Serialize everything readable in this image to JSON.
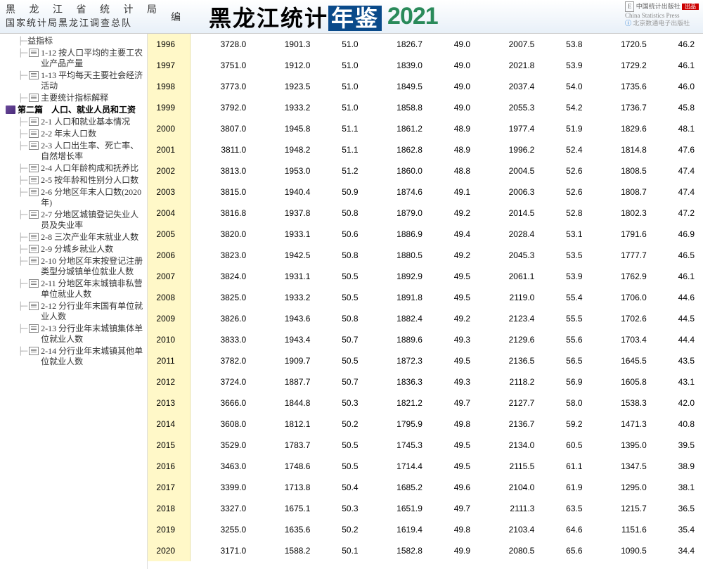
{
  "header": {
    "org_line1": "黑 龙 江 省 统 计 局",
    "org_line2": "国家统计局黑龙江调查总队",
    "editor": "编",
    "title_pre": "黑龙江统计",
    "title_box": "年鉴",
    "year": "2021",
    "publisher1_cn": "中国统计出版社",
    "publisher1_en": "China Statistics Press",
    "publisher2": "北京数通电子出版社",
    "badge": "出品"
  },
  "sidebar": {
    "items": [
      {
        "indent": 3,
        "icon": "none",
        "label": "益指标"
      },
      {
        "indent": 3,
        "icon": "doc",
        "label": "1-12 按人口平均的主要工农业产品产量"
      },
      {
        "indent": 3,
        "icon": "doc",
        "label": "1-13 平均每天主要社会经济活动"
      },
      {
        "indent": 3,
        "icon": "doc",
        "label": "主要统计指标解释"
      },
      {
        "indent": 0,
        "icon": "book",
        "label": "第二篇　人口、就业人员和工资",
        "section": true
      },
      {
        "indent": 3,
        "icon": "doc",
        "label": "2-1 人口和就业基本情况"
      },
      {
        "indent": 3,
        "icon": "doc",
        "label": "2-2 年末人口数"
      },
      {
        "indent": 3,
        "icon": "doc",
        "label": "2-3 人口出生率、死亡率、自然增长率"
      },
      {
        "indent": 3,
        "icon": "doc",
        "label": "2-4 人口年龄构成和抚养比"
      },
      {
        "indent": 3,
        "icon": "doc",
        "label": "2-5 按年龄和性别分人口数"
      },
      {
        "indent": 3,
        "icon": "doc",
        "label": "2-6 分地区年末人口数(2020年)"
      },
      {
        "indent": 3,
        "icon": "doc",
        "label": "2-7 分地区城镇登记失业人员及失业率"
      },
      {
        "indent": 3,
        "icon": "doc",
        "label": "2-8 三次产业年末就业人数"
      },
      {
        "indent": 3,
        "icon": "doc",
        "label": "2-9 分城乡就业人数"
      },
      {
        "indent": 3,
        "icon": "doc",
        "label": "2-10 分地区年末按登记注册类型分城镇单位就业人数"
      },
      {
        "indent": 3,
        "icon": "doc",
        "label": "2-11 分地区年末城镇非私营单位就业人数"
      },
      {
        "indent": 3,
        "icon": "doc",
        "label": "2-12 分行业年末国有单位就业人数"
      },
      {
        "indent": 3,
        "icon": "doc",
        "label": "2-13 分行业年末城镇集体单位就业人数"
      },
      {
        "indent": 3,
        "icon": "doc",
        "label": "2-14 分行业年末城镇其他单位就业人数"
      }
    ]
  },
  "table": {
    "year_bg": "#fff8c8",
    "rows": [
      {
        "year": "1996",
        "c": [
          "3728.0",
          "1901.3",
          "51.0",
          "1826.7",
          "49.0",
          "2007.5",
          "53.8",
          "1720.5",
          "46.2"
        ]
      },
      {
        "year": "1997",
        "c": [
          "3751.0",
          "1912.0",
          "51.0",
          "1839.0",
          "49.0",
          "2021.8",
          "53.9",
          "1729.2",
          "46.1"
        ]
      },
      {
        "year": "1998",
        "c": [
          "3773.0",
          "1923.5",
          "51.0",
          "1849.5",
          "49.0",
          "2037.4",
          "54.0",
          "1735.6",
          "46.0"
        ]
      },
      {
        "year": "1999",
        "c": [
          "3792.0",
          "1933.2",
          "51.0",
          "1858.8",
          "49.0",
          "2055.3",
          "54.2",
          "1736.7",
          "45.8"
        ]
      },
      {
        "year": "2000",
        "c": [
          "3807.0",
          "1945.8",
          "51.1",
          "1861.2",
          "48.9",
          "1977.4",
          "51.9",
          "1829.6",
          "48.1"
        ]
      },
      {
        "year": "2001",
        "c": [
          "3811.0",
          "1948.2",
          "51.1",
          "1862.8",
          "48.9",
          "1996.2",
          "52.4",
          "1814.8",
          "47.6"
        ]
      },
      {
        "year": "2002",
        "c": [
          "3813.0",
          "1953.0",
          "51.2",
          "1860.0",
          "48.8",
          "2004.5",
          "52.6",
          "1808.5",
          "47.4"
        ]
      },
      {
        "year": "2003",
        "c": [
          "3815.0",
          "1940.4",
          "50.9",
          "1874.6",
          "49.1",
          "2006.3",
          "52.6",
          "1808.7",
          "47.4"
        ]
      },
      {
        "year": "2004",
        "c": [
          "3816.8",
          "1937.8",
          "50.8",
          "1879.0",
          "49.2",
          "2014.5",
          "52.8",
          "1802.3",
          "47.2"
        ]
      },
      {
        "year": "2005",
        "c": [
          "3820.0",
          "1933.1",
          "50.6",
          "1886.9",
          "49.4",
          "2028.4",
          "53.1",
          "1791.6",
          "46.9"
        ]
      },
      {
        "year": "2006",
        "c": [
          "3823.0",
          "1942.5",
          "50.8",
          "1880.5",
          "49.2",
          "2045.3",
          "53.5",
          "1777.7",
          "46.5"
        ]
      },
      {
        "year": "2007",
        "c": [
          "3824.0",
          "1931.1",
          "50.5",
          "1892.9",
          "49.5",
          "2061.1",
          "53.9",
          "1762.9",
          "46.1"
        ]
      },
      {
        "year": "2008",
        "c": [
          "3825.0",
          "1933.2",
          "50.5",
          "1891.8",
          "49.5",
          "2119.0",
          "55.4",
          "1706.0",
          "44.6"
        ]
      },
      {
        "year": "2009",
        "c": [
          "3826.0",
          "1943.6",
          "50.8",
          "1882.4",
          "49.2",
          "2123.4",
          "55.5",
          "1702.6",
          "44.5"
        ]
      },
      {
        "year": "2010",
        "c": [
          "3833.0",
          "1943.4",
          "50.7",
          "1889.6",
          "49.3",
          "2129.6",
          "55.6",
          "1703.4",
          "44.4"
        ]
      },
      {
        "year": "2011",
        "c": [
          "3782.0",
          "1909.7",
          "50.5",
          "1872.3",
          "49.5",
          "2136.5",
          "56.5",
          "1645.5",
          "43.5"
        ]
      },
      {
        "year": "2012",
        "c": [
          "3724.0",
          "1887.7",
          "50.7",
          "1836.3",
          "49.3",
          "2118.2",
          "56.9",
          "1605.8",
          "43.1"
        ]
      },
      {
        "year": "2013",
        "c": [
          "3666.0",
          "1844.8",
          "50.3",
          "1821.2",
          "49.7",
          "2127.7",
          "58.0",
          "1538.3",
          "42.0"
        ]
      },
      {
        "year": "2014",
        "c": [
          "3608.0",
          "1812.1",
          "50.2",
          "1795.9",
          "49.8",
          "2136.7",
          "59.2",
          "1471.3",
          "40.8"
        ]
      },
      {
        "year": "2015",
        "c": [
          "3529.0",
          "1783.7",
          "50.5",
          "1745.3",
          "49.5",
          "2134.0",
          "60.5",
          "1395.0",
          "39.5"
        ]
      },
      {
        "year": "2016",
        "c": [
          "3463.0",
          "1748.6",
          "50.5",
          "1714.4",
          "49.5",
          "2115.5",
          "61.1",
          "1347.5",
          "38.9"
        ]
      },
      {
        "year": "2017",
        "c": [
          "3399.0",
          "1713.8",
          "50.4",
          "1685.2",
          "49.6",
          "2104.0",
          "61.9",
          "1295.0",
          "38.1"
        ]
      },
      {
        "year": "2018",
        "c": [
          "3327.0",
          "1675.1",
          "50.3",
          "1651.9",
          "49.7",
          "2111.3",
          "63.5",
          "1215.7",
          "36.5"
        ]
      },
      {
        "year": "2019",
        "c": [
          "3255.0",
          "1635.6",
          "50.2",
          "1619.4",
          "49.8",
          "2103.4",
          "64.6",
          "1151.6",
          "35.4"
        ]
      },
      {
        "year": "2020",
        "c": [
          "3171.0",
          "1588.2",
          "50.1",
          "1582.8",
          "49.9",
          "2080.5",
          "65.6",
          "1090.5",
          "34.4"
        ]
      }
    ]
  }
}
